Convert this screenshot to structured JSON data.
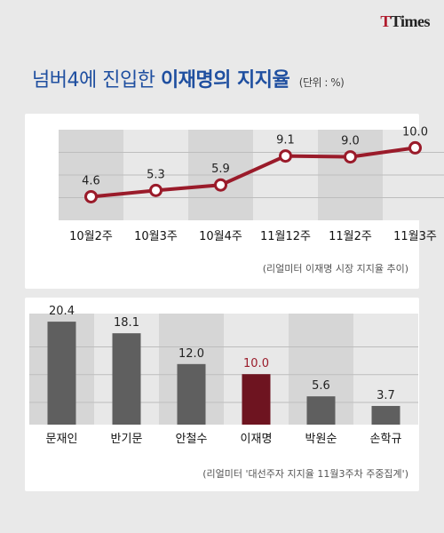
{
  "logo": {
    "part1": "T",
    "part2": "Times"
  },
  "title": {
    "normal": "넘버4에 진입한",
    "bold": "이재명의 지지율",
    "unit": "(단위 : %)"
  },
  "colors": {
    "accent": "#9a1b2a",
    "bar": "#5f5f5f",
    "highlight_bar": "#6e1420",
    "title": "#1f4fa0"
  },
  "chart_data": [
    {
      "type": "line",
      "categories": [
        "10월2주",
        "10월3주",
        "10월4주",
        "11월12주",
        "11월2주",
        "11월3주"
      ],
      "values": [
        4.6,
        5.3,
        5.9,
        9.1,
        9.0,
        10.0
      ],
      "value_labels": [
        "4.6",
        "5.3",
        "5.9",
        "9.1",
        "9.0",
        "10.0"
      ],
      "ylim": [
        2,
        12
      ],
      "source": "(리얼미터 이재명 시장 지지율 추이)"
    },
    {
      "type": "bar",
      "categories": [
        "문재인",
        "반기문",
        "안철수",
        "이재명",
        "박원순",
        "손학규"
      ],
      "values": [
        20.4,
        18.1,
        12.0,
        10.0,
        5.6,
        3.7
      ],
      "value_labels": [
        "20.4",
        "18.1",
        "12.0",
        "10.0",
        "5.6",
        "3.7"
      ],
      "highlight": "이재명",
      "ylim": [
        0,
        22
      ],
      "source": "(리얼미터 '대선주자 지지율 11월3주차 주중집계')"
    }
  ]
}
